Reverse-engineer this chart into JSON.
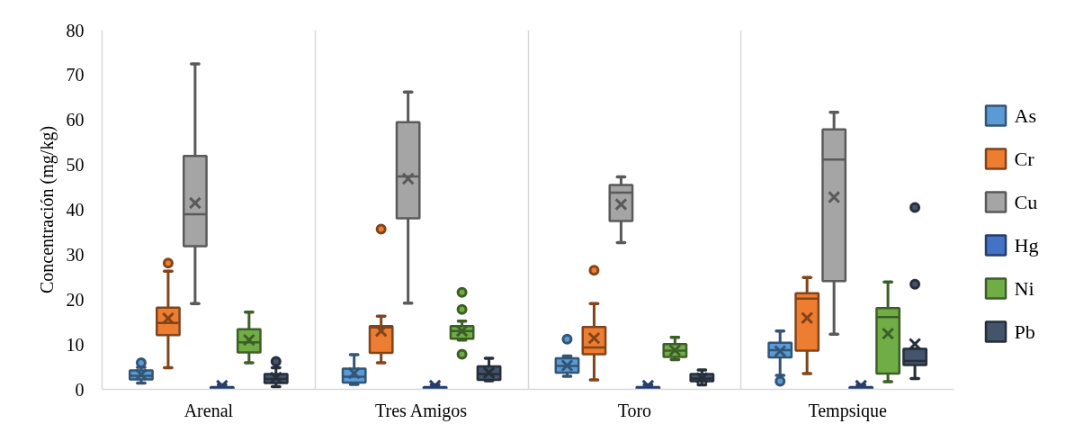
{
  "chart_data": {
    "type": "box",
    "ylabel": "Concentración (mg/kg)",
    "categories": [
      "Arenal",
      "Tres Amigos",
      "Toro",
      "Tempsique"
    ],
    "ylim": [
      0,
      80
    ],
    "yticks": [
      0,
      10,
      20,
      30,
      40,
      50,
      60,
      70,
      80
    ],
    "grid": "x",
    "legend": "right",
    "series": [
      {
        "name": "As",
        "color": "#5b9bd5",
        "boxes": [
          {
            "low": 1.4,
            "q1": 2.2,
            "median": 3.0,
            "q3": 4.2,
            "high": 4.9,
            "mean": 3.3,
            "outliers": [
              5.9
            ]
          },
          {
            "low": 1.1,
            "q1": 1.5,
            "median": 2.8,
            "q3": 4.6,
            "high": 7.7,
            "mean": 3.6
          },
          {
            "low": 2.9,
            "q1": 3.7,
            "median": 5.2,
            "q3": 6.9,
            "high": 7.4,
            "mean": 5.3,
            "outliers": [
              11.2
            ]
          },
          {
            "low": 3.1,
            "q1": 7.1,
            "median": 8.7,
            "q3": 10.4,
            "high": 13.0,
            "mean": 8.5,
            "outliers": [
              1.8
            ]
          }
        ]
      },
      {
        "name": "Cr",
        "color": "#ed7d31",
        "boxes": [
          {
            "low": 4.8,
            "q1": 12.1,
            "median": 14.8,
            "q3": 18.2,
            "high": 26.3,
            "mean": 15.8,
            "outliers": [
              28.1
            ]
          },
          {
            "low": 5.9,
            "q1": 8.1,
            "median": 13.8,
            "q3": 14.1,
            "high": 16.3,
            "mean": 13.0,
            "outliers": [
              35.7
            ]
          },
          {
            "low": 2.1,
            "q1": 7.8,
            "median": 9.3,
            "q3": 13.9,
            "high": 19.1,
            "mean": 11.4,
            "outliers": [
              26.5
            ]
          },
          {
            "low": 3.5,
            "q1": 8.6,
            "median": 20.2,
            "q3": 21.4,
            "high": 24.9,
            "mean": 15.9
          }
        ]
      },
      {
        "name": "Cu",
        "color": "#a5a5a5",
        "boxes": [
          {
            "low": 19.1,
            "q1": 31.9,
            "median": 39.0,
            "q3": 52.0,
            "high": 72.5,
            "mean": 41.5
          },
          {
            "low": 19.2,
            "q1": 38.1,
            "median": 47.4,
            "q3": 59.5,
            "high": 66.2,
            "mean": 46.9
          },
          {
            "low": 32.7,
            "q1": 37.5,
            "median": 43.8,
            "q3": 45.5,
            "high": 47.3,
            "mean": 41.2
          },
          {
            "low": 12.3,
            "q1": 24.1,
            "median": 51.2,
            "q3": 57.9,
            "high": 61.7,
            "mean": 42.8
          }
        ]
      },
      {
        "name": "Hg",
        "color": "#4472c4",
        "boxes": [
          {
            "low": 0.1,
            "q1": 0.2,
            "median": 0.3,
            "q3": 0.5,
            "high": 1.0,
            "mean": 0.8
          },
          {
            "low": 0.1,
            "q1": 0.2,
            "median": 0.3,
            "q3": 0.5,
            "high": 1.0,
            "mean": 0.8
          },
          {
            "low": 0.1,
            "q1": 0.2,
            "median": 0.3,
            "q3": 0.5,
            "high": 1.0,
            "mean": 0.8
          },
          {
            "low": 0.1,
            "q1": 0.2,
            "median": 0.3,
            "q3": 0.5,
            "high": 1.0,
            "mean": 0.8
          }
        ]
      },
      {
        "name": "Ni",
        "color": "#70ad47",
        "boxes": [
          {
            "low": 5.9,
            "q1": 8.2,
            "median": 10.5,
            "q3": 13.4,
            "high": 17.2,
            "mean": 11.0
          },
          {
            "low": 11.0,
            "q1": 11.3,
            "median": 13.0,
            "q3": 14.1,
            "high": 15.2,
            "mean": 13.0,
            "outliers": [
              7.8,
              17.8,
              21.6
            ]
          },
          {
            "low": 6.6,
            "q1": 7.2,
            "median": 8.6,
            "q3": 10.1,
            "high": 11.6,
            "mean": 8.7
          },
          {
            "low": 1.7,
            "q1": 3.5,
            "median": 16.1,
            "q3": 18.1,
            "high": 23.9,
            "mean": 12.4
          }
        ]
      },
      {
        "name": "Pb",
        "color": "#44546a",
        "boxes": [
          {
            "low": 0.6,
            "q1": 1.4,
            "median": 2.3,
            "q3": 3.4,
            "high": 4.8,
            "mean": 2.6,
            "outliers": [
              6.2
            ]
          },
          {
            "low": 1.9,
            "q1": 2.1,
            "median": 3.4,
            "q3": 5.1,
            "high": 6.9,
            "mean": 3.7
          },
          {
            "low": 1.0,
            "q1": 1.8,
            "median": 2.4,
            "q3": 3.4,
            "high": 4.3,
            "mean": 2.5
          },
          {
            "low": 2.4,
            "q1": 5.4,
            "median": 6.3,
            "q3": 9.0,
            "high": 9.0,
            "mean": 10.1,
            "outliers": [
              23.4,
              40.5
            ]
          }
        ]
      }
    ]
  }
}
